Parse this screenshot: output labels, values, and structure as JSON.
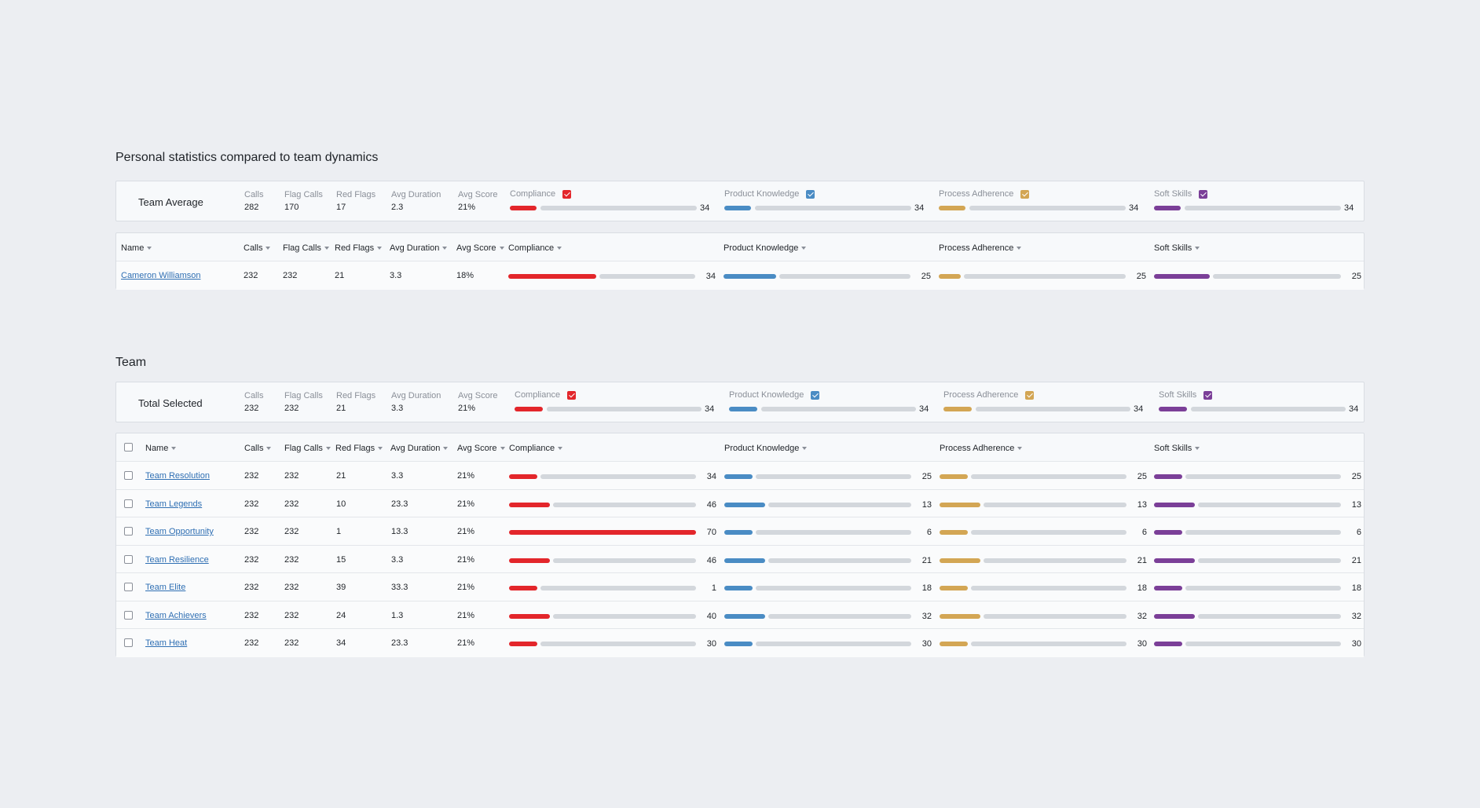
{
  "colors": {
    "compliance": "#e3262b",
    "product_knowledge": "#4a8cc4",
    "process_adherence": "#d3a654",
    "soft_skills": "#7b3f98"
  },
  "personal": {
    "title": "Personal statistics compared to team dynamics",
    "summary": {
      "label": "Team Average",
      "stats": [
        {
          "label": "Calls",
          "value": "282"
        },
        {
          "label": "Flag Calls",
          "value": "170"
        },
        {
          "label": "Red Flags",
          "value": "17"
        },
        {
          "label": "Avg Duration",
          "value": "2.3"
        },
        {
          "label": "Avg Score",
          "value": "21%"
        }
      ],
      "metrics": [
        {
          "label": "Compliance",
          "value": "34",
          "fill": 0.15
        },
        {
          "label": "Product Knowledge",
          "value": "34",
          "fill": 0.15
        },
        {
          "label": "Process Adherence",
          "value": "34",
          "fill": 0.15
        },
        {
          "label": "Soft Skills",
          "value": "34",
          "fill": 0.15
        }
      ]
    },
    "headers": {
      "name": "Name",
      "calls": "Calls",
      "flag_calls": "Flag Calls",
      "red_flags": "Red Flags",
      "avg_duration": "Avg Duration",
      "avg_score": "Avg Score",
      "compliance": "Compliance",
      "product_knowledge": "Product Knowledge",
      "process_adherence": "Process Adherence",
      "soft_skills": "Soft Skills"
    },
    "row": {
      "name": "Cameron Williamson",
      "calls": "232",
      "flag_calls": "232",
      "red_flags": "21",
      "avg_duration": "3.3",
      "avg_score": "18%",
      "metrics": [
        {
          "value": "34",
          "fill": 0.47
        },
        {
          "value": "25",
          "fill": 0.28
        },
        {
          "value": "25",
          "fill": 0.1
        },
        {
          "value": "25",
          "fill": 0.3
        }
      ]
    }
  },
  "team": {
    "title": "Team",
    "summary": {
      "label": "Total Selected",
      "stats": [
        {
          "label": "Calls",
          "value": "232"
        },
        {
          "label": "Flag Calls",
          "value": "232"
        },
        {
          "label": "Red Flags",
          "value": "21"
        },
        {
          "label": "Avg Duration",
          "value": "3.3"
        },
        {
          "label": "Avg Score",
          "value": "21%"
        }
      ],
      "metrics": [
        {
          "label": "Compliance",
          "value": "34",
          "fill": 0.16
        },
        {
          "label": "Product Knowledge",
          "value": "34",
          "fill": 0.16
        },
        {
          "label": "Process Adherence",
          "value": "34",
          "fill": 0.16
        },
        {
          "label": "Soft Skills",
          "value": "34",
          "fill": 0.16
        }
      ]
    },
    "headers": {
      "name": "Name",
      "calls": "Calls",
      "flag_calls": "Flag Calls",
      "red_flags": "Red Flags",
      "avg_duration": "Avg Duration",
      "avg_score": "Avg Score",
      "compliance": "Compliance",
      "product_knowledge": "Product Knowledge",
      "process_adherence": "Process Adherence",
      "soft_skills": "Soft Skills"
    },
    "rows": [
      {
        "name": "Team Resolution",
        "calls": "232",
        "flag_calls": "232",
        "red_flags": "21",
        "avg_duration": "3.3",
        "avg_score": "21%",
        "metrics": [
          {
            "value": "34",
            "fill": 0.15
          },
          {
            "value": "25",
            "fill": 0.15
          },
          {
            "value": "25",
            "fill": 0.15
          },
          {
            "value": "25",
            "fill": 0.15
          }
        ]
      },
      {
        "name": "Team Legends",
        "calls": "232",
        "flag_calls": "232",
        "red_flags": "10",
        "avg_duration": "23.3",
        "avg_score": "21%",
        "metrics": [
          {
            "value": "46",
            "fill": 0.22
          },
          {
            "value": "13",
            "fill": 0.22
          },
          {
            "value": "13",
            "fill": 0.22
          },
          {
            "value": "13",
            "fill": 0.22
          }
        ]
      },
      {
        "name": "Team Opportunity",
        "calls": "232",
        "flag_calls": "232",
        "red_flags": "1",
        "avg_duration": "13.3",
        "avg_score": "21%",
        "metrics": [
          {
            "value": "70",
            "fill": 1.0
          },
          {
            "value": "6",
            "fill": 0.15
          },
          {
            "value": "6",
            "fill": 0.15
          },
          {
            "value": "6",
            "fill": 0.15
          }
        ]
      },
      {
        "name": "Team Resilience",
        "calls": "232",
        "flag_calls": "232",
        "red_flags": "15",
        "avg_duration": "3.3",
        "avg_score": "21%",
        "metrics": [
          {
            "value": "46",
            "fill": 0.22
          },
          {
            "value": "21",
            "fill": 0.22
          },
          {
            "value": "21",
            "fill": 0.22
          },
          {
            "value": "21",
            "fill": 0.22
          }
        ]
      },
      {
        "name": "Team Elite",
        "calls": "232",
        "flag_calls": "232",
        "red_flags": "39",
        "avg_duration": "33.3",
        "avg_score": "21%",
        "metrics": [
          {
            "value": "1",
            "fill": 0.15
          },
          {
            "value": "18",
            "fill": 0.15
          },
          {
            "value": "18",
            "fill": 0.15
          },
          {
            "value": "18",
            "fill": 0.15
          }
        ]
      },
      {
        "name": "Team Achievers",
        "calls": "232",
        "flag_calls": "232",
        "red_flags": "24",
        "avg_duration": "1.3",
        "avg_score": "21%",
        "metrics": [
          {
            "value": "40",
            "fill": 0.22
          },
          {
            "value": "32",
            "fill": 0.22
          },
          {
            "value": "32",
            "fill": 0.22
          },
          {
            "value": "32",
            "fill": 0.22
          }
        ]
      },
      {
        "name": "Team Heat",
        "calls": "232",
        "flag_calls": "232",
        "red_flags": "34",
        "avg_duration": "23.3",
        "avg_score": "21%",
        "metrics": [
          {
            "value": "30",
            "fill": 0.15
          },
          {
            "value": "30",
            "fill": 0.15
          },
          {
            "value": "30",
            "fill": 0.15
          },
          {
            "value": "30",
            "fill": 0.15
          }
        ]
      }
    ]
  }
}
